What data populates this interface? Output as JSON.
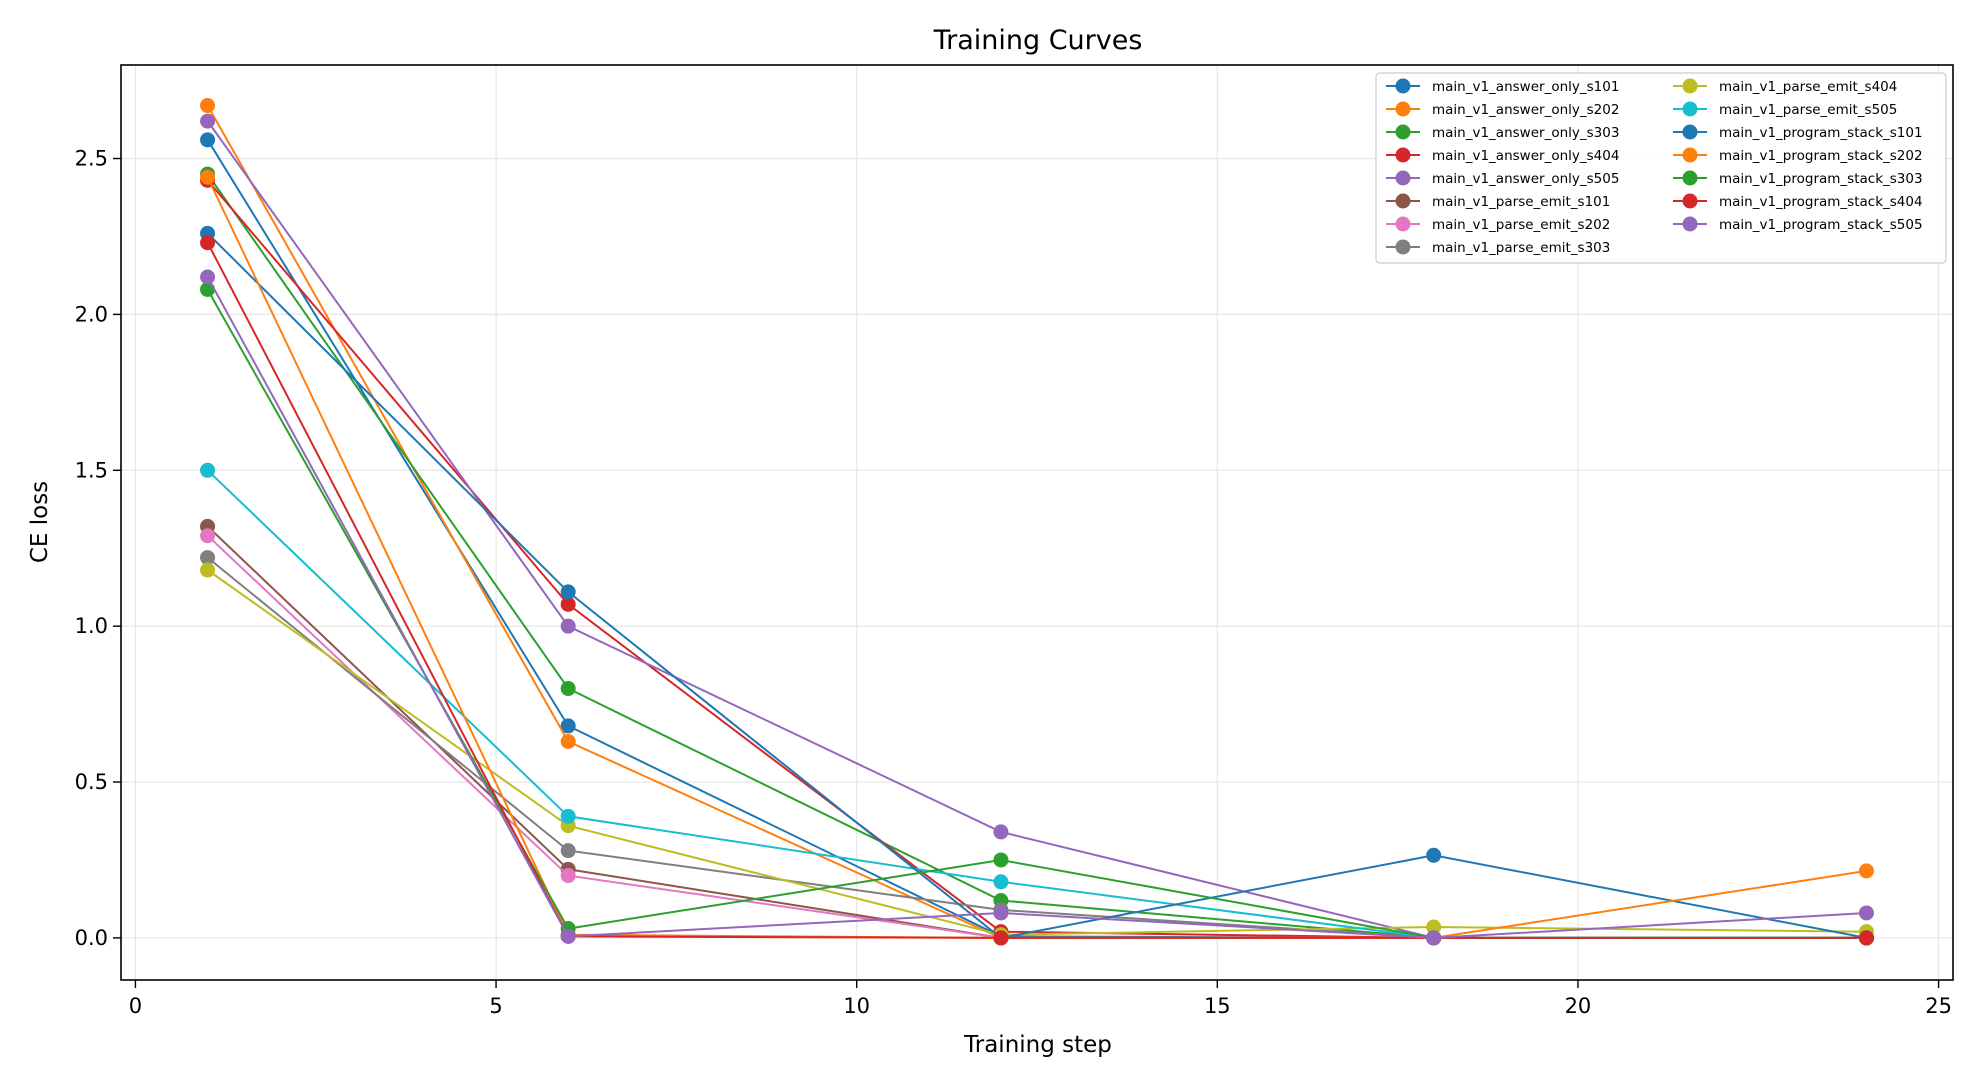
{
  "chart_data": {
    "type": "line",
    "title": "Training Curves",
    "xlabel": "Training step",
    "ylabel": "CE loss",
    "xlim": [
      -0.2,
      25.2
    ],
    "ylim": [
      -0.135,
      2.8
    ],
    "xticks": [
      0,
      5,
      10,
      15,
      20,
      25
    ],
    "yticks": [
      0.0,
      0.5,
      1.0,
      1.5,
      2.0,
      2.5
    ],
    "grid": true,
    "legend_position": "top-right",
    "legend_columns": 2,
    "x": [
      1,
      6,
      12,
      18,
      24
    ],
    "series": [
      {
        "name": "main_v1_answer_only_s101",
        "color": "#1f77b4",
        "values": [
          2.56,
          0.68,
          0.005,
          0.0,
          0.0
        ]
      },
      {
        "name": "main_v1_answer_only_s202",
        "color": "#ff7f0e",
        "values": [
          2.67,
          0.63,
          0.0,
          0.0,
          0.0
        ]
      },
      {
        "name": "main_v1_answer_only_s303",
        "color": "#2ca02c",
        "values": [
          2.45,
          0.8,
          0.12,
          0.0,
          0.0
        ]
      },
      {
        "name": "main_v1_answer_only_s404",
        "color": "#d62728",
        "values": [
          2.43,
          1.07,
          0.02,
          0.0,
          0.0
        ]
      },
      {
        "name": "main_v1_answer_only_s505",
        "color": "#9467bd",
        "values": [
          2.62,
          1.0,
          0.34,
          0.0,
          0.0
        ]
      },
      {
        "name": "main_v1_parse_emit_s101",
        "color": "#8c564b",
        "values": [
          1.32,
          0.22,
          0.0,
          0.0,
          0.0
        ]
      },
      {
        "name": "main_v1_parse_emit_s202",
        "color": "#e377c2",
        "values": [
          1.29,
          0.2,
          0.0,
          0.0,
          0.0
        ]
      },
      {
        "name": "main_v1_parse_emit_s303",
        "color": "#7f7f7f",
        "values": [
          1.22,
          0.28,
          0.09,
          0.0,
          0.0
        ]
      },
      {
        "name": "main_v1_parse_emit_s404",
        "color": "#bcbd22",
        "values": [
          1.18,
          0.36,
          0.01,
          0.035,
          0.02
        ]
      },
      {
        "name": "main_v1_parse_emit_s505",
        "color": "#17becf",
        "values": [
          1.5,
          0.39,
          0.18,
          0.0,
          0.0
        ]
      },
      {
        "name": "main_v1_program_stack_s101",
        "color": "#1f77b4",
        "values": [
          2.26,
          1.11,
          0.0,
          0.265,
          0.0
        ]
      },
      {
        "name": "main_v1_program_stack_s202",
        "color": "#ff7f0e",
        "values": [
          2.44,
          0.01,
          0.0,
          0.0,
          0.215
        ]
      },
      {
        "name": "main_v1_program_stack_s303",
        "color": "#2ca02c",
        "values": [
          2.08,
          0.03,
          0.25,
          0.0,
          0.0
        ]
      },
      {
        "name": "main_v1_program_stack_s404",
        "color": "#d62728",
        "values": [
          2.23,
          0.005,
          0.0,
          0.0,
          0.0
        ]
      },
      {
        "name": "main_v1_program_stack_s505",
        "color": "#9467bd",
        "values": [
          2.12,
          0.005,
          0.08,
          0.0,
          0.08
        ]
      }
    ]
  }
}
